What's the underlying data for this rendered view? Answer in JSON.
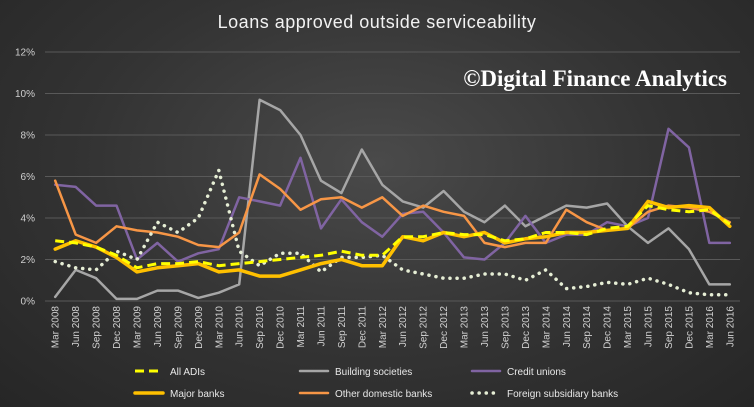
{
  "chart_data": {
    "type": "line",
    "title": "Loans approved outside serviceability",
    "watermark": "©Digital Finance Analytics",
    "xlabel": "",
    "ylabel": "",
    "ylim": [
      0,
      12
    ],
    "yticks": [
      "0%",
      "2%",
      "4%",
      "6%",
      "8%",
      "10%",
      "12%"
    ],
    "grid": "horizontal",
    "legend_position": "bottom",
    "categories": [
      "Mar 2008",
      "Jun 2008",
      "Sep 2008",
      "Dec 2008",
      "Mar 2009",
      "Jun 2009",
      "Sep 2009",
      "Dec 2009",
      "Mar 2010",
      "Jun 2010",
      "Sep 2010",
      "Dec 2010",
      "Mar 2011",
      "Jun 2011",
      "Sep 2011",
      "Dec 2011",
      "Mar 2012",
      "Jun 2012",
      "Sep 2012",
      "Dec 2012",
      "Mar 2013",
      "Jun 2013",
      "Sep 2013",
      "Dec 2013",
      "Mar 2014",
      "Jun 2014",
      "Sep 2014",
      "Dec 2014",
      "Mar 2015",
      "Jun 2015",
      "Sep 2015",
      "Dec 2015",
      "Mar 2016",
      "Jun 2016"
    ],
    "series": [
      {
        "name": "Building societies",
        "color": "#a6a6a6",
        "style": "solid",
        "values": [
          0.2,
          1.5,
          1.1,
          0.1,
          0.1,
          0.5,
          0.5,
          0.15,
          0.4,
          0.8,
          9.7,
          9.2,
          8.0,
          5.8,
          5.2,
          7.3,
          5.6,
          4.8,
          4.5,
          5.3,
          4.3,
          3.8,
          4.6,
          3.6,
          4.1,
          4.6,
          4.5,
          4.7,
          3.6,
          2.8,
          3.5,
          2.5,
          0.8,
          0.8
        ]
      },
      {
        "name": "Credit unions",
        "color": "#8064a2",
        "style": "solid",
        "values": [
          5.6,
          5.5,
          4.6,
          4.6,
          2.0,
          2.8,
          1.9,
          2.3,
          2.5,
          5.0,
          4.8,
          4.6,
          6.9,
          3.5,
          4.9,
          3.8,
          3.1,
          4.2,
          4.3,
          3.3,
          2.1,
          2.0,
          2.8,
          4.1,
          2.8,
          3.2,
          3.2,
          3.8,
          3.6,
          4.0,
          8.3,
          7.4,
          2.8,
          2.8
        ]
      },
      {
        "name": "Other domestic banks",
        "color": "#f79646",
        "style": "solid",
        "values": [
          5.8,
          3.2,
          2.8,
          3.6,
          3.4,
          3.3,
          3.1,
          2.7,
          2.6,
          3.3,
          6.1,
          5.4,
          4.4,
          4.9,
          5.0,
          4.5,
          5.0,
          4.1,
          4.6,
          4.3,
          4.1,
          2.8,
          2.6,
          2.8,
          2.8,
          4.4,
          3.8,
          3.4,
          3.5,
          4.3,
          4.6,
          4.5,
          4.3,
          3.8
        ]
      },
      {
        "name": "Foreign subsidiary banks",
        "color": "#e6eed5",
        "style": "dotted",
        "values": [
          1.9,
          1.6,
          1.5,
          2.4,
          2.0,
          3.8,
          3.3,
          4.0,
          6.3,
          2.4,
          1.7,
          2.3,
          2.3,
          1.4,
          2.1,
          2.1,
          2.2,
          1.5,
          1.3,
          1.1,
          1.1,
          1.3,
          1.3,
          1.0,
          1.5,
          0.6,
          0.7,
          0.9,
          0.8,
          1.1,
          0.8,
          0.4,
          0.3,
          0.3
        ]
      },
      {
        "name": "Major banks",
        "color": "#ffc000",
        "style": "solid-thick",
        "values": [
          2.5,
          2.9,
          2.6,
          2.1,
          1.4,
          1.6,
          1.7,
          1.8,
          1.4,
          1.5,
          1.2,
          1.2,
          1.5,
          1.8,
          2.0,
          1.7,
          1.7,
          3.1,
          2.9,
          3.3,
          3.1,
          3.3,
          2.8,
          3.0,
          3.1,
          3.3,
          3.3,
          3.4,
          3.5,
          4.8,
          4.5,
          4.6,
          4.5,
          3.6
        ]
      },
      {
        "name": "All ADIs",
        "color": "#ffff00",
        "style": "dashed",
        "values": [
          2.9,
          2.8,
          2.6,
          2.2,
          1.6,
          1.8,
          1.8,
          1.9,
          1.7,
          1.8,
          1.9,
          2.0,
          2.1,
          2.2,
          2.4,
          2.2,
          2.2,
          3.1,
          3.1,
          3.3,
          3.2,
          3.2,
          2.9,
          3.0,
          3.3,
          3.3,
          3.2,
          3.5,
          3.6,
          4.6,
          4.4,
          4.3,
          4.4,
          3.7
        ]
      }
    ],
    "legend": [
      {
        "name": "All ADIs",
        "color": "#ffff00",
        "style": "dashed"
      },
      {
        "name": "Building societies",
        "color": "#a6a6a6",
        "style": "solid"
      },
      {
        "name": "Credit unions",
        "color": "#8064a2",
        "style": "solid"
      },
      {
        "name": "Major banks",
        "color": "#ffc000",
        "style": "solid-thick"
      },
      {
        "name": "Other domestic banks",
        "color": "#f79646",
        "style": "solid"
      },
      {
        "name": "Foreign subsidiary banks",
        "color": "#e6eed5",
        "style": "dotted"
      }
    ]
  }
}
